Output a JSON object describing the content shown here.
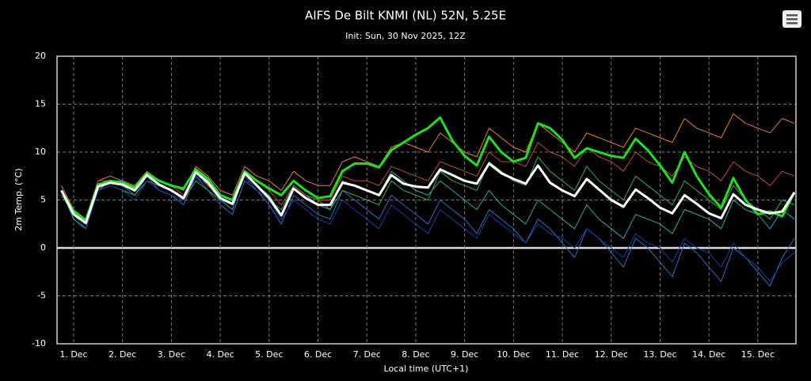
{
  "chart_data": {
    "type": "line",
    "title": "AIFS De Bilt KNMI (NL) 52N, 5.25E",
    "subtitle": "Init: Sun, 30 Nov 2025, 12Z",
    "y_label": "2m Temp. (°C)",
    "x_label": "Local time (UTC+1)",
    "grid": true,
    "xlim": [
      0.66,
      15.78
    ],
    "ylim": [
      -10,
      20
    ],
    "yticks": [
      -10,
      -5,
      0,
      5,
      10,
      15,
      20
    ],
    "xticks": [
      {
        "value": 1,
        "label": "1. Dec"
      },
      {
        "value": 2,
        "label": "2. Dec"
      },
      {
        "value": 3,
        "label": "3. Dec"
      },
      {
        "value": 4,
        "label": "4. Dec"
      },
      {
        "value": 5,
        "label": "5. Dec"
      },
      {
        "value": 6,
        "label": "6. Dec"
      },
      {
        "value": 7,
        "label": "7. Dec"
      },
      {
        "value": 8,
        "label": "8. Dec"
      },
      {
        "value": 9,
        "label": "9. Dec"
      },
      {
        "value": 10,
        "label": "10. Dec"
      },
      {
        "value": 11,
        "label": "11. Dec"
      },
      {
        "value": 12,
        "label": "12. Dec"
      },
      {
        "value": 13,
        "label": "13. Dec"
      },
      {
        "value": 14,
        "label": "14. Dec"
      },
      {
        "value": 15,
        "label": "15. Dec"
      }
    ],
    "x": [
      0.75,
      1,
      1.25,
      1.5,
      1.75,
      2,
      2.25,
      2.5,
      2.75,
      3,
      3.25,
      3.5,
      3.75,
      4,
      4.25,
      4.5,
      4.75,
      5,
      5.25,
      5.5,
      5.75,
      6,
      6.25,
      6.5,
      6.75,
      7,
      7.25,
      7.5,
      7.75,
      8,
      8.25,
      8.5,
      8.75,
      9,
      9.25,
      9.5,
      9.75,
      10,
      10.25,
      10.5,
      10.75,
      11,
      11.25,
      11.5,
      11.75,
      12,
      12.25,
      12.5,
      12.75,
      13,
      13.25,
      13.5,
      13.75,
      14,
      14.25,
      14.5,
      14.75,
      15,
      15.25,
      15.5,
      15.75
    ],
    "series": [
      {
        "color": "#2a6fbf",
        "width": 1,
        "values": [
          6,
          3,
          2,
          6.5,
          7,
          6.5,
          5.5,
          7.5,
          6,
          5.5,
          4.5,
          7.5,
          6,
          4.5,
          3.5,
          7,
          6,
          4.5,
          2.5,
          5.5,
          4.5,
          3.5,
          3,
          6,
          5,
          4,
          3,
          5.5,
          4.5,
          3.5,
          2.5,
          5,
          4,
          3,
          1.5,
          4,
          3,
          2,
          0.5,
          3,
          2,
          0.5,
          -1,
          2,
          1,
          -0.5,
          -2,
          1,
          0,
          -1.5,
          -3,
          0.5,
          -0.5,
          -2,
          -3.5,
          0,
          -1,
          -2.5,
          -4,
          -1,
          1
        ]
      },
      {
        "color": "#d9822b",
        "width": 1,
        "values": [
          6.5,
          4,
          3,
          7,
          7.5,
          7,
          6.5,
          8,
          7,
          6.5,
          6,
          8.5,
          7.5,
          6,
          5.5,
          8.5,
          7.5,
          7,
          6,
          8,
          7,
          6.5,
          6.5,
          9,
          9.5,
          9,
          8.5,
          10.5,
          11,
          10.5,
          10,
          12,
          11,
          10,
          9.5,
          12.5,
          11.5,
          10.5,
          10,
          13,
          12,
          11,
          10,
          12,
          11.5,
          11,
          10.5,
          12.5,
          12,
          11.5,
          11,
          13.5,
          12.5,
          12,
          11.5,
          14,
          13,
          12.5,
          12,
          13.5,
          13
        ]
      },
      {
        "color": "#3aa84a",
        "width": 1,
        "values": [
          5.5,
          3.5,
          2.5,
          6,
          6.5,
          6,
          5.5,
          7,
          6.5,
          6,
          5,
          7,
          6,
          5,
          4.5,
          7.5,
          6,
          5,
          4,
          6.5,
          5.5,
          5,
          4,
          6,
          5.5,
          5,
          4.5,
          7,
          6,
          5.5,
          5,
          8,
          7,
          6.5,
          6,
          9,
          8,
          7,
          6.5,
          9.5,
          8,
          7,
          6,
          8.5,
          7,
          6,
          5,
          7.5,
          6.5,
          5.5,
          4.5,
          7,
          6,
          5,
          4,
          6.5,
          5,
          4,
          3,
          5,
          4.5
        ]
      },
      {
        "color": "#2fa3a3",
        "width": 1,
        "values": [
          6,
          3,
          2,
          6,
          7,
          7,
          6,
          8,
          6.5,
          6,
          5,
          8,
          7,
          5,
          4,
          8,
          6.5,
          5.5,
          3.5,
          6.5,
          5.5,
          4.5,
          4,
          7,
          6.5,
          6,
          5.5,
          8,
          7,
          6,
          5.5,
          7,
          6,
          5,
          4,
          6,
          4.5,
          3.5,
          2.5,
          5,
          4,
          3,
          2,
          4.5,
          3,
          2,
          1,
          3.5,
          3,
          2.5,
          1.5,
          4,
          3.5,
          3,
          2,
          5,
          4,
          3.5,
          2,
          4,
          3
        ]
      },
      {
        "color": "#203c9a",
        "width": 1,
        "values": [
          6,
          3.5,
          2,
          6,
          6.5,
          6,
          5,
          7,
          6,
          5.5,
          5,
          7.5,
          6.5,
          5,
          4.5,
          7.5,
          6,
          5,
          3,
          5,
          4,
          3,
          2.5,
          5,
          4,
          3,
          2,
          4.5,
          3.5,
          2.5,
          1.5,
          4,
          3,
          2,
          1,
          3.5,
          2.5,
          1.5,
          0.5,
          2.5,
          1.5,
          1,
          0,
          2,
          1,
          0,
          -1,
          1.5,
          0.5,
          0,
          -1.5,
          1,
          0,
          -0.5,
          -2,
          0.5,
          -1,
          -2,
          -3.5,
          -1.5,
          -0.5
        ]
      },
      {
        "color": "#b5502d",
        "width": 1,
        "values": [
          6,
          3.5,
          3,
          7,
          7,
          6.5,
          6,
          8,
          7,
          6.5,
          5.5,
          8,
          6.5,
          5.5,
          5,
          8,
          7,
          6,
          4.5,
          6.5,
          5.5,
          5,
          5,
          7.5,
          7,
          7,
          6.5,
          8.5,
          8,
          7.5,
          7,
          9,
          8.5,
          8,
          7.5,
          10,
          9,
          9,
          8.5,
          11,
          10,
          9.5,
          8.5,
          10.5,
          9.5,
          9,
          8,
          10,
          9,
          8.5,
          7.5,
          9.5,
          8.5,
          8,
          7,
          9,
          8,
          7.5,
          6.5,
          8,
          7.5
        ]
      },
      {
        "color": "#22dd22",
        "width": 3,
        "values": [
          6,
          3.8,
          2.9,
          6.6,
          7,
          6.8,
          6.3,
          7.8,
          7,
          6.5,
          6.2,
          8.2,
          7.2,
          5.5,
          5,
          8,
          7,
          6.2,
          5.5,
          7,
          6,
          5.2,
          5.4,
          8,
          8.8,
          8.8,
          8.4,
          10.2,
          11,
          11.8,
          12.5,
          13.6,
          11.2,
          9.6,
          8.6,
          11.6,
          10,
          9,
          9.4,
          13,
          12.5,
          11.3,
          9.4,
          10.4,
          10,
          9.6,
          9.4,
          11.4,
          10.2,
          8.6,
          6.8,
          10,
          7.5,
          5.6,
          4.2,
          7.3,
          5,
          3.5,
          3.8,
          3.3,
          5.8
        ]
      },
      {
        "color": "#ffffff",
        "width": 3,
        "values": [
          6,
          3.5,
          2.6,
          6.4,
          6.8,
          6.6,
          6,
          7.6,
          6.6,
          6,
          5.2,
          7.9,
          6.8,
          5.2,
          4.6,
          7.8,
          6.5,
          5.2,
          3.4,
          6.2,
          5.2,
          4.5,
          4.5,
          6.8,
          6.5,
          6,
          5.5,
          7.6,
          6.7,
          6.4,
          6.3,
          8.2,
          7.6,
          7,
          6.7,
          8.8,
          7.8,
          7.2,
          6.7,
          8.6,
          6.8,
          6,
          5.4,
          7.2,
          6.1,
          5,
          4.3,
          6.1,
          5.2,
          4.2,
          3.6,
          5.5,
          4.6,
          3.6,
          3.1,
          5.6,
          4.5,
          4,
          3.6,
          3.8,
          5.8
        ]
      }
    ]
  }
}
